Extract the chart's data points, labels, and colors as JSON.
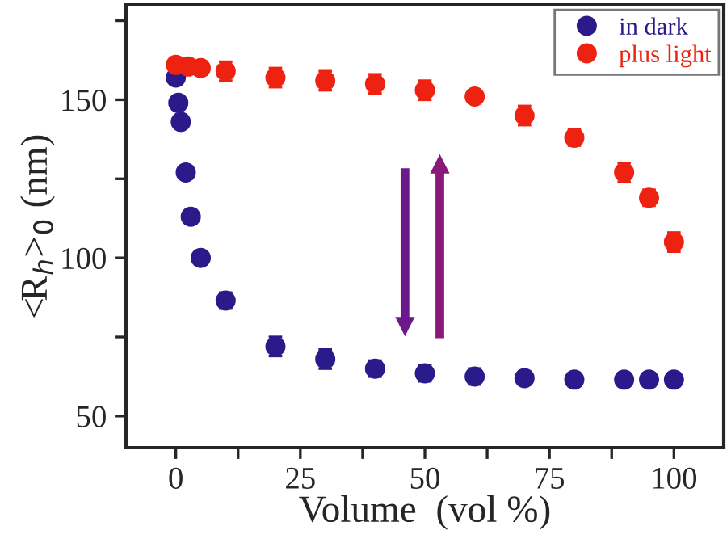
{
  "chart_data": {
    "type": "scatter",
    "xlabel": "Volume  (vol %)",
    "ylabel": "<R$_{h}$>$_{0}$ (nm)",
    "xlim": [
      -10,
      110
    ],
    "ylim": [
      40,
      180
    ],
    "xticks": [
      0,
      {
        "value": 12.5,
        "label": null
      },
      25,
      {
        "value": 37.5,
        "label": null
      },
      50,
      {
        "value": 62.5,
        "label": null
      },
      75,
      {
        "value": 87.5,
        "label": null
      },
      100
    ],
    "yticks": [
      50,
      {
        "value": 75,
        "label": null
      },
      100,
      {
        "value": 125,
        "label": null
      },
      150,
      {
        "value": 175,
        "label": null
      }
    ],
    "legend": "top right",
    "marker": "circle",
    "grid": false,
    "series": [
      {
        "name": "in dark",
        "color": "#2b1a8a",
        "x": [
          0,
          0.5,
          1,
          2,
          3,
          5,
          10,
          20,
          30,
          40,
          50,
          60,
          70,
          80,
          90,
          95,
          100
        ],
        "values": [
          157,
          149,
          143,
          127,
          113,
          100,
          86.5,
          72,
          68,
          65,
          63.5,
          62.5,
          62,
          61.5,
          61.5,
          61.5,
          61.5
        ],
        "errors": [
          2,
          2,
          2,
          2,
          2,
          2,
          2.5,
          3,
          3,
          2.5,
          2.5,
          2.5,
          2,
          2,
          2,
          2,
          2
        ]
      },
      {
        "name": "plus light",
        "color": "#ee2211",
        "x": [
          0,
          2.5,
          5,
          10,
          20,
          30,
          40,
          50,
          60,
          70,
          80,
          90,
          95,
          100
        ],
        "values": [
          161,
          160.5,
          160,
          159,
          157,
          156,
          155,
          153,
          151,
          145,
          138,
          127,
          119,
          105
        ],
        "errors": [
          2,
          2,
          2,
          3,
          3,
          3,
          3,
          3,
          2,
          3,
          2.5,
          3,
          2.5,
          3
        ]
      }
    ]
  }
}
